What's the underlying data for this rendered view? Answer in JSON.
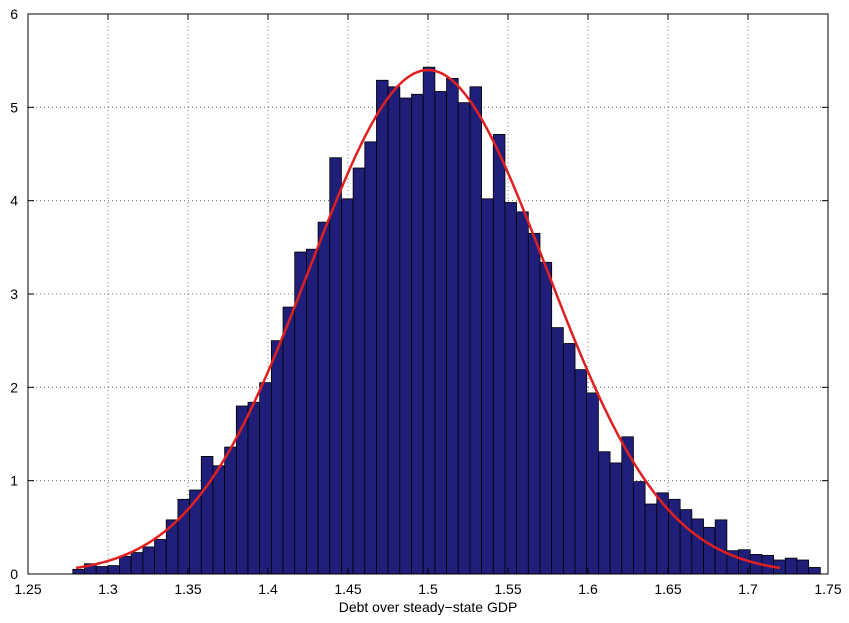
{
  "chart_data": {
    "type": "bar",
    "title": "",
    "xlabel": "Debt over steady−state GDP",
    "ylabel": "",
    "xlim": [
      1.25,
      1.75
    ],
    "ylim": [
      0,
      6
    ],
    "grid": true,
    "x_ticks": [
      1.25,
      1.3,
      1.35,
      1.4,
      1.45,
      1.5,
      1.55,
      1.6,
      1.65,
      1.7,
      1.75
    ],
    "x_tick_labels": [
      "1.25",
      "1.3",
      "1.35",
      "1.4",
      "1.45",
      "1.5",
      "1.55",
      "1.6",
      "1.65",
      "1.7",
      "1.75"
    ],
    "y_ticks": [
      0,
      1,
      2,
      3,
      4,
      5,
      6
    ],
    "y_tick_labels": [
      "0",
      "1",
      "2",
      "3",
      "4",
      "5",
      "6"
    ],
    "bin_start": 1.278,
    "bin_width": 0.0073,
    "values": [
      0.05,
      0.11,
      0.08,
      0.09,
      0.19,
      0.23,
      0.29,
      0.37,
      0.58,
      0.8,
      0.9,
      1.26,
      1.16,
      1.36,
      1.8,
      1.84,
      2.05,
      2.5,
      2.86,
      3.45,
      3.48,
      3.77,
      4.46,
      4.02,
      4.35,
      4.63,
      5.29,
      5.22,
      5.1,
      5.14,
      5.43,
      5.17,
      5.31,
      5.05,
      5.22,
      4.02,
      4.71,
      3.98,
      3.88,
      3.65,
      3.34,
      2.64,
      2.47,
      2.19,
      1.94,
      1.31,
      1.19,
      1.47,
      0.99,
      0.75,
      0.87,
      0.8,
      0.69,
      0.59,
      0.5,
      0.58,
      0.25,
      0.26,
      0.21,
      0.2,
      0.15,
      0.17,
      0.15,
      0.07
    ],
    "fit_curve": {
      "type": "normal",
      "mean": 1.5,
      "sd": 0.074,
      "peak": 5.4,
      "x_range": [
        1.28,
        1.72
      ]
    },
    "colors": {
      "bar_fill": "#1f1f7a",
      "bar_edge": "#000000",
      "curve": "#e02020",
      "grid": "#555555"
    }
  }
}
